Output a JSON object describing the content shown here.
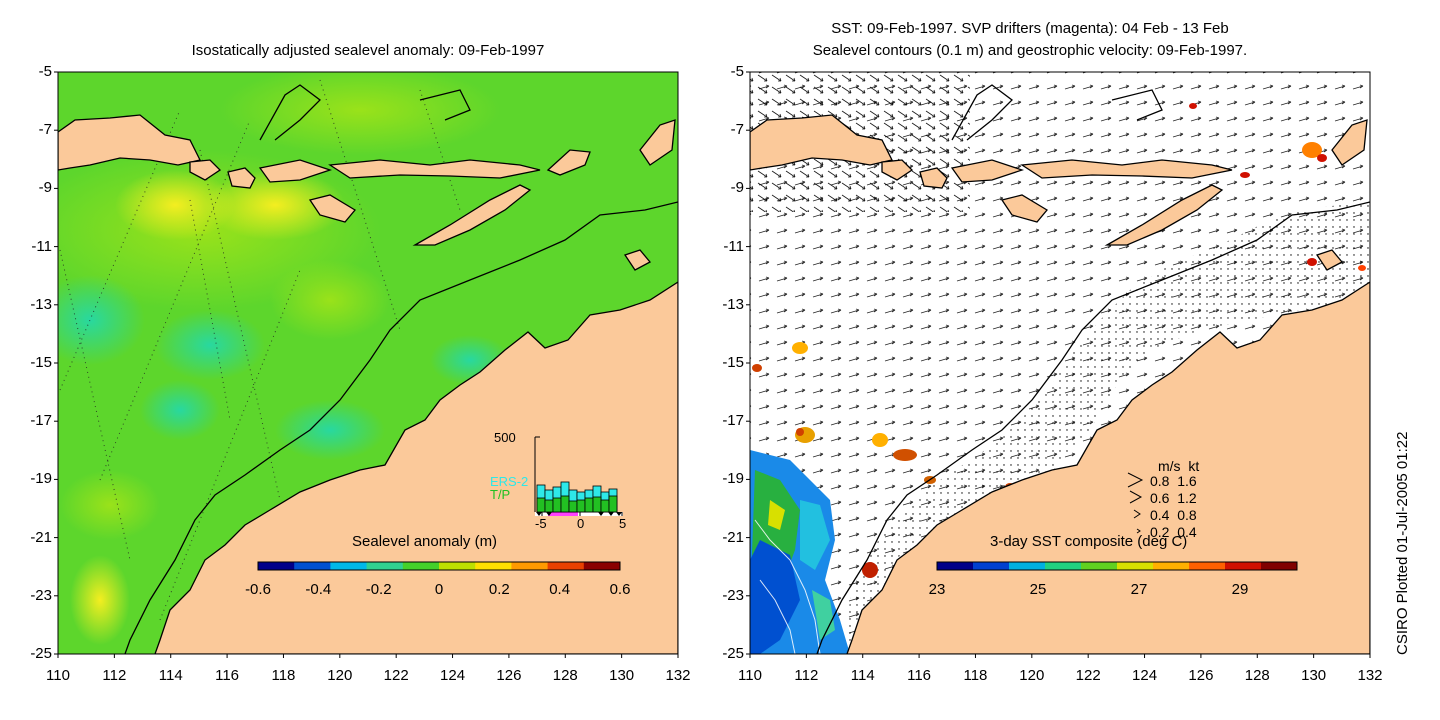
{
  "left_panel": {
    "title": "Isostatically adjusted sealevel anomaly: 09-Feb-1997",
    "colorbar": {
      "title": "Sealevel anomaly (m)",
      "ticks": [
        "-0.6",
        "-0.4",
        "-0.2",
        "0",
        "0.2",
        "0.4",
        "0.6"
      ],
      "colors": [
        "#00008a",
        "#0050d0",
        "#00b8e8",
        "#30d090",
        "#44d02a",
        "#bde000",
        "#ffe000",
        "#ff9a00",
        "#e84000",
        "#8a0000"
      ]
    },
    "inset": {
      "ymax_label": "500",
      "series": [
        "ERS-2",
        "T/P"
      ],
      "series_colors": [
        "#2ee8e8",
        "#22c022"
      ],
      "xticks": [
        "-5",
        "0",
        "5"
      ]
    }
  },
  "right_panel": {
    "title_line1": "SST: 09-Feb-1997. SVP drifters (magenta): 04 Feb - 13 Feb",
    "title_line2": "Sealevel contours (0.1 m) and geostrophic velocity: 09-Feb-1997.",
    "colorbar": {
      "title": "3-day SST composite (deg C)",
      "ticks": [
        "23",
        "25",
        "27",
        "29"
      ],
      "colors": [
        "#000088",
        "#0040d0",
        "#00b0e0",
        "#20d080",
        "#60d020",
        "#d8e000",
        "#ffb000",
        "#ff6000",
        "#d01000",
        "#800000"
      ]
    },
    "velocity_legend": {
      "header": "m/s  kt",
      "rows": [
        "0.8  1.6",
        "0.6  1.2",
        "0.4  0.8",
        "0.2  0.4"
      ]
    }
  },
  "axes": {
    "y_ticks": [
      "-5",
      "-7",
      "-9",
      "-11",
      "-13",
      "-15",
      "-17",
      "-19",
      "-21",
      "-23",
      "-25"
    ],
    "x_ticks": [
      "110",
      "112",
      "114",
      "116",
      "118",
      "120",
      "122",
      "124",
      "126",
      "128",
      "130",
      "132"
    ]
  },
  "credit": "CSIRO Plotted 01-Jul-2005 01:22",
  "colors": {
    "land": "#fbc99a",
    "ocean_base": "#5dd62c",
    "coast": "#000000"
  }
}
